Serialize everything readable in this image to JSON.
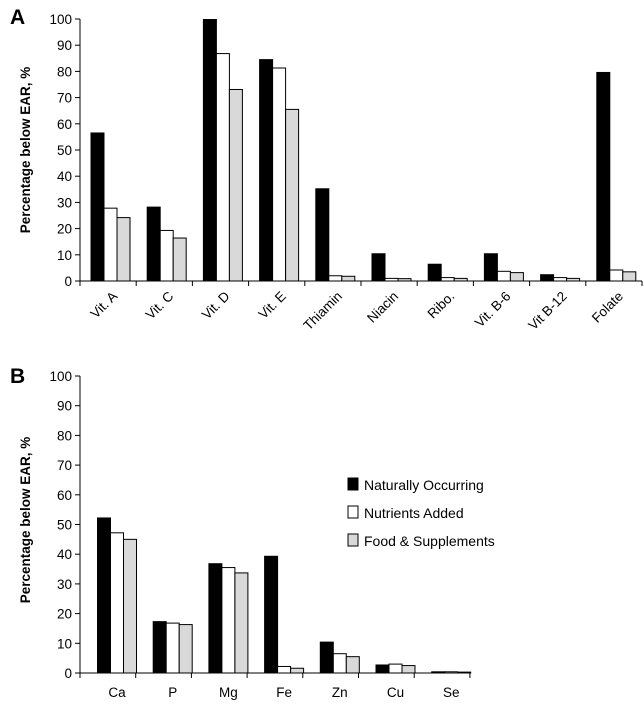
{
  "chart_data": [
    {
      "panel": "A",
      "type": "bar",
      "ylabel": "Percentage below EAR, %",
      "ylim": [
        0,
        100
      ],
      "yticks": [
        0,
        10,
        20,
        30,
        40,
        50,
        60,
        70,
        80,
        90,
        100
      ],
      "categories": [
        "Vit. A",
        "Vit. C",
        "Vit. D",
        "Vit. E",
        "Thiamin",
        "Niacin",
        "Ribo.",
        "Vit. B-6",
        "Vit B-12",
        "Folate"
      ],
      "series": [
        {
          "name": "Naturally Occurring",
          "color": "#000000",
          "values": [
            56.5,
            28.2,
            99.8,
            84.5,
            35.2,
            10.4,
            6.4,
            10.4,
            2.4,
            79.6
          ]
        },
        {
          "name": "Nutrients Added",
          "color": "#ffffff",
          "values": [
            27.8,
            19.3,
            86.8,
            81.3,
            2.0,
            1.0,
            1.3,
            3.7,
            1.3,
            4.2
          ]
        },
        {
          "name": "Food & Supplements",
          "color": "#d9d9d9",
          "values": [
            24.2,
            16.4,
            73.1,
            65.5,
            1.8,
            0.9,
            1.0,
            3.2,
            1.0,
            3.5
          ]
        }
      ],
      "grid": false
    },
    {
      "panel": "B",
      "type": "bar",
      "ylabel": "Percentage below EAR, %",
      "ylim": [
        0,
        100
      ],
      "yticks": [
        0,
        10,
        20,
        30,
        40,
        50,
        60,
        70,
        80,
        90,
        100
      ],
      "categories": [
        "Ca",
        "P",
        "Mg",
        "Fe",
        "Zn",
        "Cu",
        "Se"
      ],
      "series": [
        {
          "name": "Naturally Occurring",
          "color": "#000000",
          "values": [
            52.2,
            17.3,
            36.8,
            39.3,
            10.4,
            2.7,
            0.4
          ]
        },
        {
          "name": "Nutrients Added",
          "color": "#ffffff",
          "values": [
            47.2,
            16.8,
            35.5,
            2.2,
            6.5,
            3.0,
            0.4
          ]
        },
        {
          "name": "Food & Supplements",
          "color": "#d9d9d9",
          "values": [
            45.0,
            16.3,
            33.7,
            1.6,
            5.5,
            2.5,
            0.3
          ]
        }
      ],
      "legend": {
        "placement": "right",
        "items": [
          "Naturally Occurring",
          "Nutrients Added",
          "Food & Supplements"
        ]
      },
      "grid": false
    }
  ]
}
